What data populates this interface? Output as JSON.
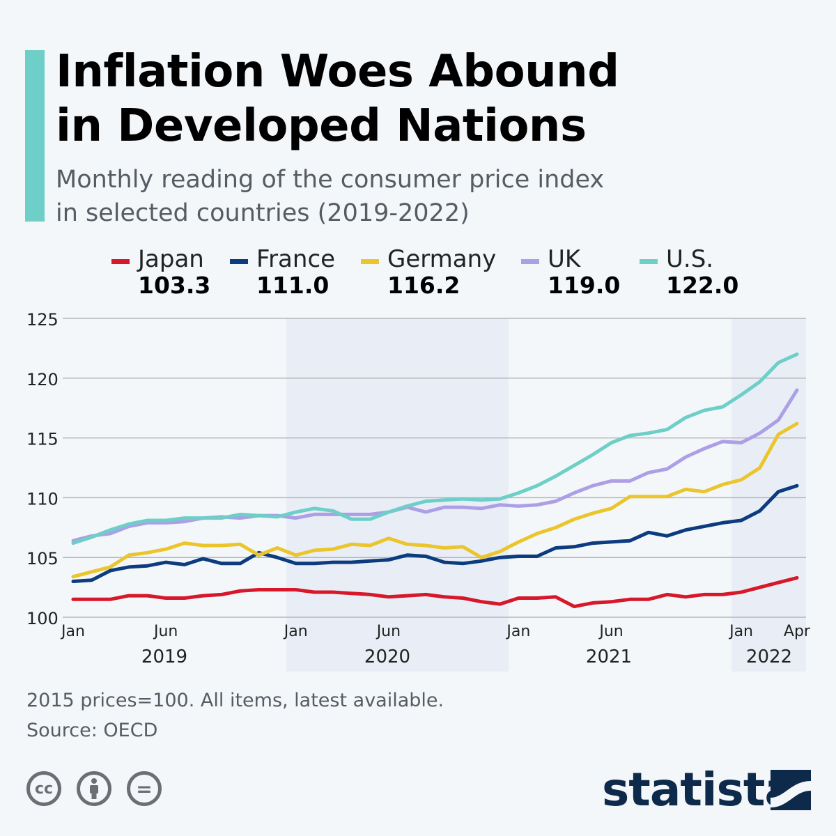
{
  "header": {
    "title_line1": "Inflation Woes Abound",
    "title_line2": "in Developed Nations",
    "subtitle_line1": "Monthly reading of the consumer price index",
    "subtitle_line2": "in selected countries (2019-2022)"
  },
  "colors": {
    "accent": "#6dcfc8",
    "Japan": "#d7182a",
    "France": "#0c3b7e",
    "Germany": "#ebc52d",
    "UK": "#ad9fe6",
    "U.S.": "#6dcfc8",
    "shade": "#e9eef6"
  },
  "legend": [
    {
      "name": "Japan",
      "value": "103.3"
    },
    {
      "name": "France",
      "value": "111.0"
    },
    {
      "name": "Germany",
      "value": "116.2"
    },
    {
      "name": "UK",
      "value": "119.0"
    },
    {
      "name": "U.S.",
      "value": "122.0"
    }
  ],
  "chart_data": {
    "type": "line",
    "x_start": "2019-01",
    "x_end": "2022-04",
    "frequency": "monthly",
    "ylim": [
      100,
      125
    ],
    "yticks": [
      "100",
      "105",
      "110",
      "115",
      "120",
      "125"
    ],
    "xtick_labels": [
      "Jan",
      "Jun",
      "Jan",
      "Jun",
      "Jan",
      "Jun",
      "Jan",
      "Apr"
    ],
    "year_labels": [
      "2019",
      "2020",
      "2021",
      "2022"
    ],
    "shaded_years": [
      "2020",
      "2022"
    ],
    "grid": true,
    "legend": "top",
    "series": [
      {
        "name": "Japan",
        "values": [
          101.5,
          101.5,
          101.5,
          101.8,
          101.8,
          101.6,
          101.6,
          101.8,
          101.9,
          102.2,
          102.3,
          102.3,
          102.3,
          102.1,
          102.1,
          102.0,
          101.9,
          101.7,
          101.8,
          101.9,
          101.7,
          101.6,
          101.3,
          101.1,
          101.6,
          101.6,
          101.7,
          100.9,
          101.2,
          101.3,
          101.5,
          101.5,
          101.9,
          101.7,
          101.9,
          101.9,
          102.1,
          102.5,
          102.9,
          103.3
        ]
      },
      {
        "name": "France",
        "values": [
          103.0,
          103.1,
          103.9,
          104.2,
          104.3,
          104.6,
          104.4,
          104.9,
          104.5,
          104.5,
          105.4,
          105.0,
          104.5,
          104.5,
          104.6,
          104.6,
          104.7,
          104.8,
          105.2,
          105.1,
          104.6,
          104.5,
          104.7,
          105.0,
          105.1,
          105.1,
          105.8,
          105.9,
          106.2,
          106.3,
          106.4,
          107.1,
          106.8,
          107.3,
          107.6,
          107.9,
          108.1,
          108.9,
          110.5,
          111.0
        ]
      },
      {
        "name": "Germany",
        "values": [
          103.4,
          103.8,
          104.2,
          105.2,
          105.4,
          105.7,
          106.2,
          106.0,
          106.0,
          106.1,
          105.2,
          105.8,
          105.2,
          105.6,
          105.7,
          106.1,
          106.0,
          106.6,
          106.1,
          106.0,
          105.8,
          105.9,
          105.0,
          105.5,
          106.3,
          107.0,
          107.5,
          108.2,
          108.7,
          109.1,
          110.1,
          110.1,
          110.1,
          110.7,
          110.5,
          111.1,
          111.5,
          112.5,
          115.3,
          116.2
        ]
      },
      {
        "name": "UK",
        "values": [
          106.4,
          106.8,
          107.0,
          107.6,
          107.9,
          107.9,
          108.0,
          108.3,
          108.4,
          108.3,
          108.5,
          108.5,
          108.3,
          108.6,
          108.6,
          108.6,
          108.6,
          108.8,
          109.2,
          108.8,
          109.2,
          109.2,
          109.1,
          109.4,
          109.3,
          109.4,
          109.7,
          110.4,
          111.0,
          111.4,
          111.4,
          112.1,
          112.4,
          113.4,
          114.1,
          114.7,
          114.6,
          115.4,
          116.5,
          119.0
        ]
      },
      {
        "name": "U.S.",
        "values": [
          106.2,
          106.7,
          107.3,
          107.8,
          108.1,
          108.1,
          108.3,
          108.3,
          108.3,
          108.6,
          108.5,
          108.4,
          108.8,
          109.1,
          108.9,
          108.2,
          108.2,
          108.8,
          109.3,
          109.7,
          109.8,
          109.9,
          109.8,
          109.9,
          110.4,
          111.0,
          111.8,
          112.7,
          113.6,
          114.6,
          115.2,
          115.4,
          115.7,
          116.7,
          117.3,
          117.6,
          118.6,
          119.7,
          121.3,
          122.0
        ]
      }
    ]
  },
  "footer": {
    "note": "2015 prices=100. All items, latest available.",
    "source": "Source: OECD",
    "logo": "statista",
    "license_icons": [
      "cc-icon",
      "attribution-icon",
      "no-derivatives-icon"
    ],
    "cc_text": "cc",
    "nd_text": "="
  }
}
